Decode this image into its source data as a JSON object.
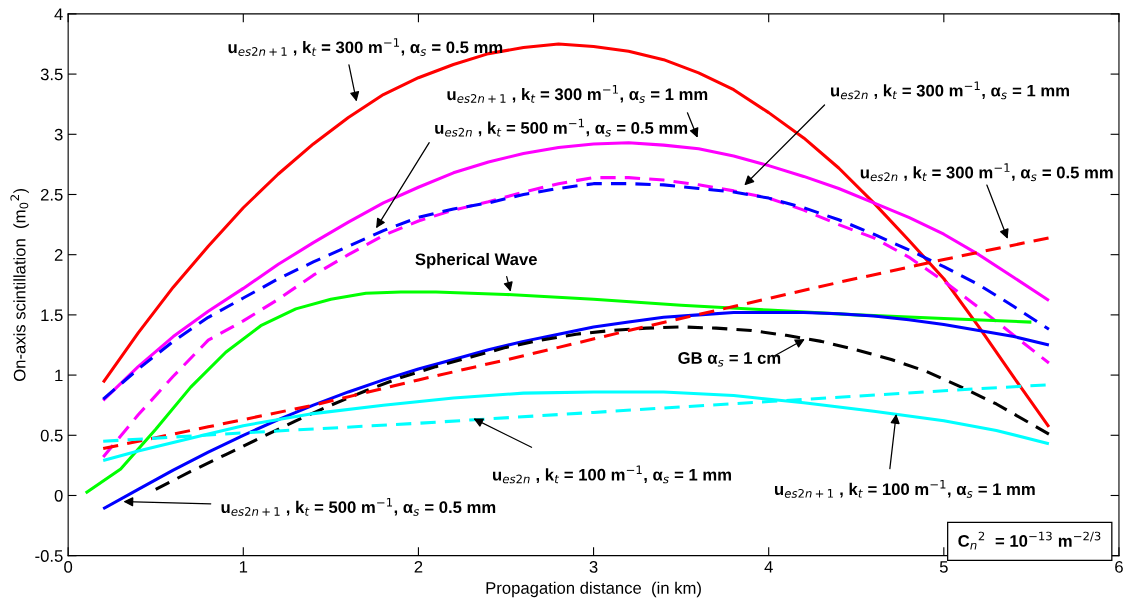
{
  "chart_data": {
    "type": "line",
    "xlabel": "Propagation distance  (in km)",
    "ylabel": "On-axis scintillation  (m$_{0}$$^{2}$)",
    "xlim": [
      0,
      6
    ],
    "ylim": [
      -0.5,
      4
    ],
    "xticks": [
      0,
      1,
      2,
      3,
      4,
      5,
      6
    ],
    "yticks": [
      -0.5,
      0,
      0.5,
      1,
      1.5,
      2,
      2.5,
      3,
      3.5,
      4
    ],
    "grid": false,
    "legend": false,
    "series": [
      {
        "color": "#ff0000",
        "line_style": "solid",
        "x": [
          0.2,
          0.4,
          0.6,
          0.8,
          1.0,
          1.2,
          1.4,
          1.6,
          1.8,
          2.0,
          2.2,
          2.4,
          2.6,
          2.8,
          3.0,
          3.2,
          3.4,
          3.6,
          3.8,
          4.0,
          4.2,
          4.4,
          4.6,
          4.8,
          5.0,
          5.2,
          5.4,
          5.6
        ],
        "values": [
          0.94,
          1.35,
          1.73,
          2.07,
          2.39,
          2.67,
          2.92,
          3.14,
          3.33,
          3.47,
          3.58,
          3.67,
          3.72,
          3.75,
          3.73,
          3.69,
          3.62,
          3.51,
          3.37,
          3.18,
          2.97,
          2.72,
          2.43,
          2.12,
          1.8,
          1.4,
          0.98,
          0.57
        ]
      },
      {
        "color": "#ff00ff",
        "line_style": "solid",
        "x": [
          0.2,
          0.4,
          0.6,
          0.8,
          1.0,
          1.2,
          1.4,
          1.6,
          1.8,
          2.0,
          2.2,
          2.4,
          2.6,
          2.8,
          3.0,
          3.2,
          3.4,
          3.6,
          3.8,
          4.0,
          4.2,
          4.4,
          4.6,
          4.8,
          5.0,
          5.2,
          5.4,
          5.6
        ],
        "values": [
          0.79,
          1.07,
          1.32,
          1.53,
          1.72,
          1.92,
          2.1,
          2.27,
          2.43,
          2.56,
          2.68,
          2.77,
          2.84,
          2.89,
          2.92,
          2.93,
          2.91,
          2.88,
          2.82,
          2.74,
          2.65,
          2.55,
          2.43,
          2.31,
          2.17,
          2.0,
          1.81,
          1.62
        ]
      },
      {
        "color": "#ff00ff",
        "line_style": "dashed",
        "x": [
          0.2,
          0.4,
          0.6,
          0.8,
          1.0,
          1.2,
          1.4,
          1.6,
          1.8,
          2.0,
          2.2,
          2.4,
          2.6,
          2.8,
          3.0,
          3.2,
          3.4,
          3.6,
          3.8,
          4.0,
          4.2,
          4.4,
          4.6,
          4.8,
          5.0,
          5.2,
          5.4,
          5.6
        ],
        "values": [
          0.32,
          0.67,
          0.99,
          1.29,
          1.45,
          1.63,
          1.83,
          2.0,
          2.16,
          2.28,
          2.37,
          2.44,
          2.52,
          2.59,
          2.64,
          2.64,
          2.62,
          2.58,
          2.53,
          2.47,
          2.37,
          2.25,
          2.14,
          1.98,
          1.78,
          1.56,
          1.33,
          1.1
        ]
      },
      {
        "color": "#0000ff",
        "line_style": "dashed",
        "x": [
          0.2,
          0.4,
          0.6,
          0.8,
          1.0,
          1.2,
          1.4,
          1.6,
          1.8,
          2.0,
          2.2,
          2.4,
          2.6,
          2.8,
          3.0,
          3.2,
          3.4,
          3.6,
          3.8,
          4.0,
          4.2,
          4.4,
          4.6,
          4.8,
          5.0,
          5.2,
          5.4,
          5.6
        ],
        "values": [
          0.8,
          1.05,
          1.28,
          1.48,
          1.64,
          1.8,
          1.94,
          2.07,
          2.2,
          2.31,
          2.38,
          2.43,
          2.5,
          2.55,
          2.59,
          2.59,
          2.58,
          2.55,
          2.52,
          2.47,
          2.39,
          2.29,
          2.17,
          2.04,
          1.9,
          1.75,
          1.57,
          1.38
        ]
      },
      {
        "color": "#00ff00",
        "line_style": "solid",
        "x": [
          0.1,
          0.3,
          0.5,
          0.7,
          0.9,
          1.1,
          1.3,
          1.5,
          1.7,
          1.9,
          2.1,
          2.3,
          2.5,
          3.0,
          3.5,
          4.0,
          4.5,
          5.0,
          5.5
        ],
        "values": [
          0.02,
          0.22,
          0.55,
          0.9,
          1.19,
          1.41,
          1.55,
          1.63,
          1.68,
          1.69,
          1.69,
          1.68,
          1.67,
          1.63,
          1.58,
          1.54,
          1.5,
          1.47,
          1.44
        ]
      },
      {
        "color": "#0000ff",
        "line_style": "solid",
        "x": [
          0.2,
          0.4,
          0.6,
          0.8,
          1.0,
          1.2,
          1.4,
          1.6,
          1.8,
          2.0,
          2.2,
          2.4,
          2.6,
          2.8,
          3.0,
          3.2,
          3.4,
          3.6,
          3.8,
          4.0,
          4.2,
          4.4,
          4.6,
          4.8,
          5.0,
          5.2,
          5.4,
          5.6
        ],
        "values": [
          -0.11,
          0.05,
          0.21,
          0.36,
          0.5,
          0.63,
          0.75,
          0.86,
          0.96,
          1.05,
          1.13,
          1.21,
          1.28,
          1.34,
          1.4,
          1.44,
          1.48,
          1.5,
          1.52,
          1.52,
          1.52,
          1.51,
          1.49,
          1.46,
          1.42,
          1.37,
          1.32,
          1.25
        ]
      },
      {
        "color": "#000000",
        "line_style": "dashed",
        "x": [
          0.5,
          0.7,
          0.9,
          1.1,
          1.3,
          1.5,
          1.7,
          1.9,
          2.1,
          2.3,
          2.5,
          2.7,
          2.9,
          3.1,
          3.3,
          3.5,
          3.7,
          3.9,
          4.1,
          4.3,
          4.5,
          4.7,
          4.9,
          5.1,
          5.3,
          5.6
        ],
        "values": [
          0.05,
          0.2,
          0.34,
          0.48,
          0.62,
          0.75,
          0.87,
          0.98,
          1.07,
          1.15,
          1.23,
          1.29,
          1.34,
          1.37,
          1.39,
          1.4,
          1.39,
          1.37,
          1.33,
          1.28,
          1.21,
          1.13,
          1.03,
          0.9,
          0.76,
          0.51
        ]
      },
      {
        "color": "#ff0000",
        "line_style": "dashed",
        "x": [
          0.2,
          0.8,
          1.4,
          2.0,
          2.6,
          3.2,
          3.8,
          4.4,
          5.0,
          5.6
        ],
        "values": [
          0.39,
          0.57,
          0.75,
          0.96,
          1.16,
          1.37,
          1.57,
          1.77,
          1.96,
          2.14
        ]
      },
      {
        "color": "#00ffff",
        "line_style": "solid",
        "x": [
          0.2,
          0.4,
          0.6,
          0.8,
          1.0,
          1.4,
          1.8,
          2.2,
          2.6,
          3.0,
          3.4,
          3.8,
          4.2,
          4.6,
          5.0,
          5.3,
          5.6
        ],
        "values": [
          0.29,
          0.37,
          0.44,
          0.51,
          0.58,
          0.68,
          0.75,
          0.81,
          0.85,
          0.86,
          0.86,
          0.83,
          0.77,
          0.7,
          0.62,
          0.54,
          0.43
        ]
      },
      {
        "color": "#00ffff",
        "line_style": "dashed",
        "x": [
          0.2,
          1.0,
          2.0,
          3.0,
          4.0,
          5.0,
          5.6
        ],
        "values": [
          0.45,
          0.52,
          0.6,
          0.69,
          0.78,
          0.87,
          0.92
        ]
      }
    ],
    "annotations": [
      "u$_{es2n+1}$ , k$_{t}$ = 300 m$^{−1}$, α$_{s}$ = 0.5 mm",
      "u$_{es2n+1}$ , k$_{t}$ = 300 m$^{−1}$, α$_{s}$ = 1 mm",
      "u$_{es2n}$ , k$_{t}$ = 500 m$^{−1}$, α$_{s}$ = 0.5 mm",
      "u$_{es2n}$ , k$_{t}$ = 300 m$^{−1}$, α$_{s}$ = 1 mm",
      "u$_{es2n}$ , k$_{t}$ = 300 m$^{−1}$, α$_{s}$ = 0.5 mm",
      {
        "text": "Spherical Wave",
        "x": 2.53,
        "y": 1.67
      },
      {
        "text": "GB α$_{s}$ = 1 cm",
        "x": 4.22,
        "y": 1.31
      },
      "u$_{es2n}$ , k$_{t}$ = 100 m$^{−1}$, α$_{s}$ = 1 mm",
      "u$_{es2n+1}$ , k$_{t}$ = 100 m$^{−1}$, α$_{s}$ = 1 mm",
      "u$_{es2n+1}$ , k$_{t}$ = 500 m$^{−1}$, α$_{s}$ = 0.5 mm",
      "C$_{n}$$^{2}$  = 10$^{−13}$ m$^{−2/3}$"
    ]
  }
}
